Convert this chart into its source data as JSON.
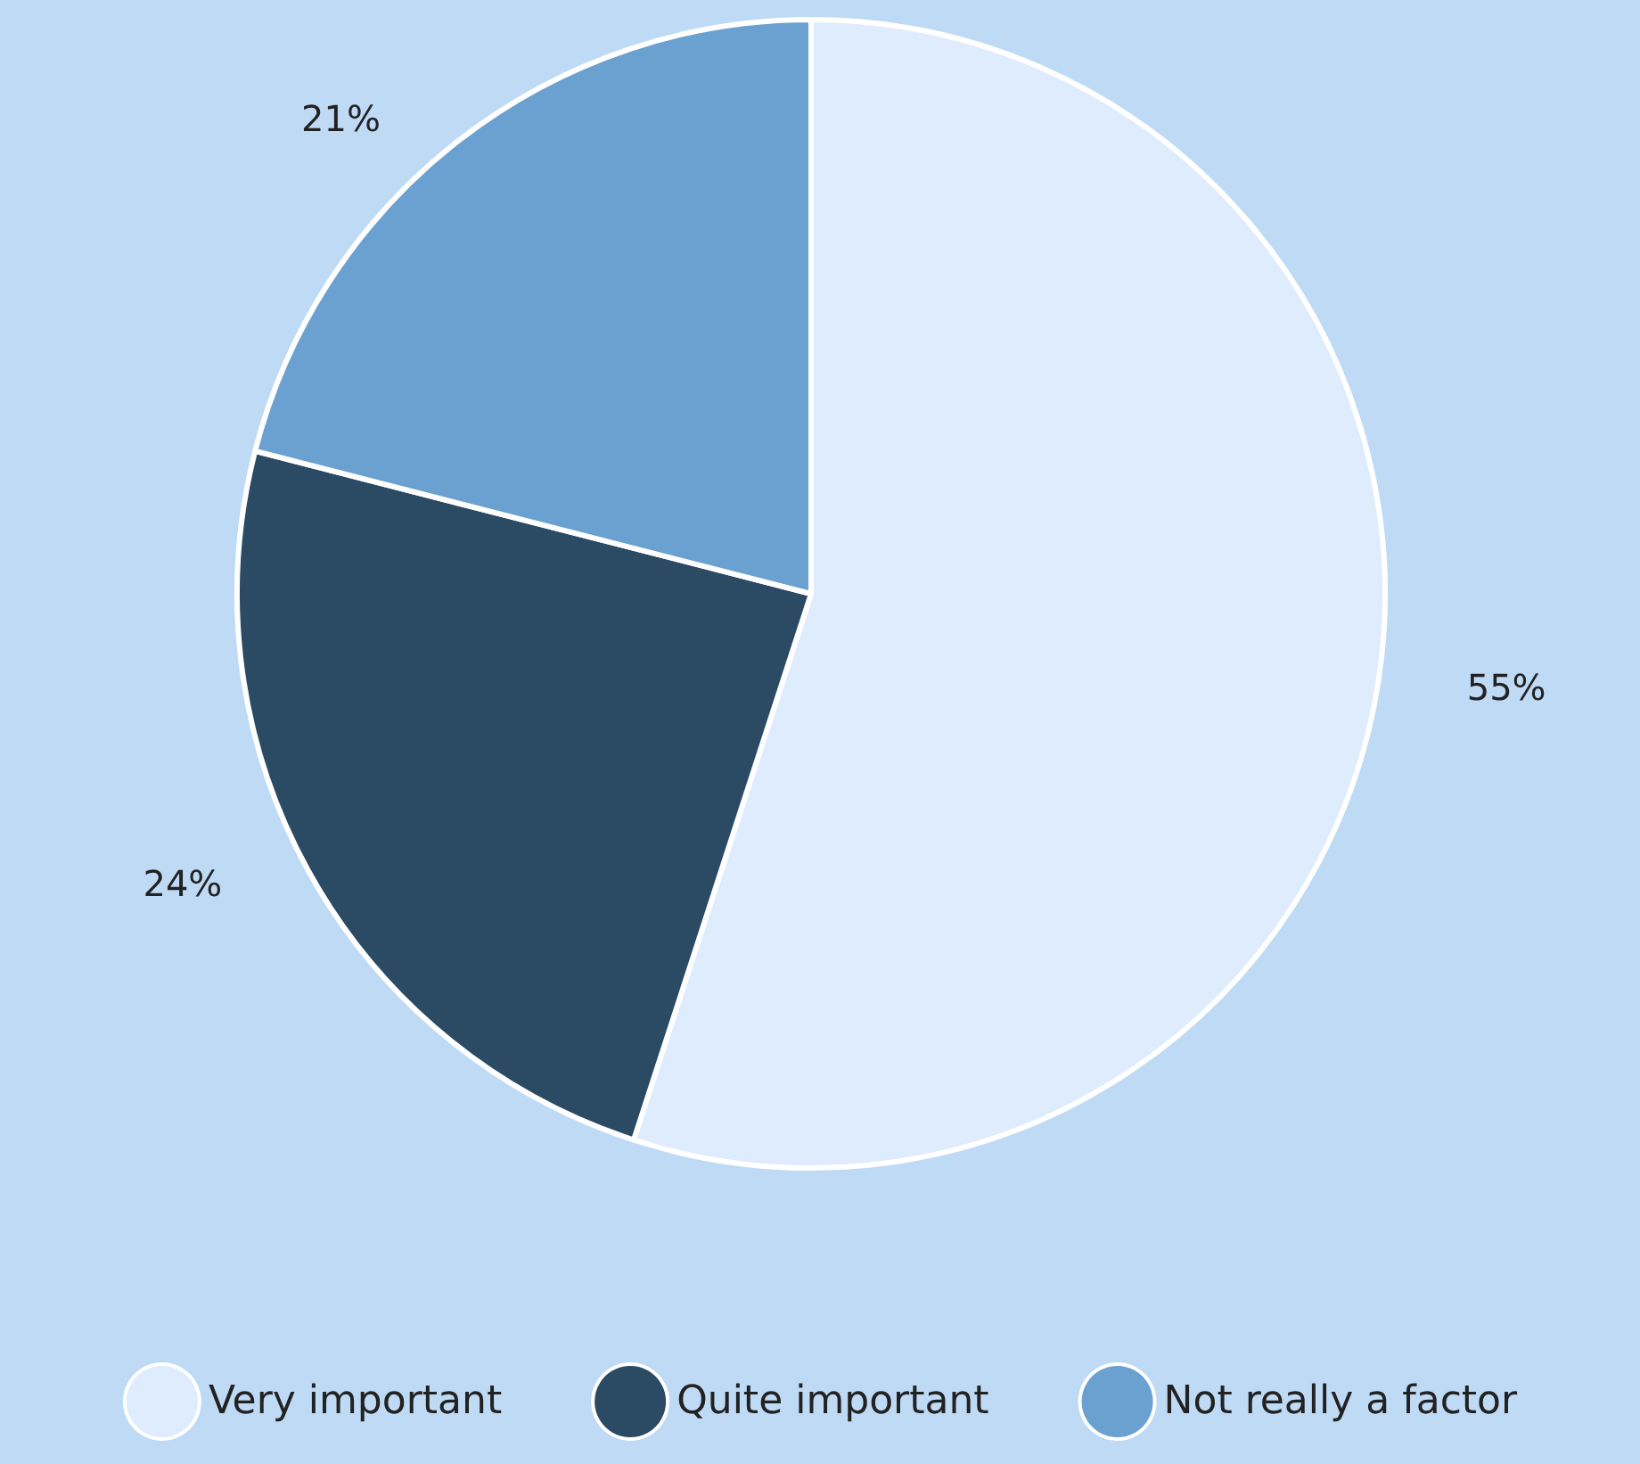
{
  "chart_data": {
    "type": "pie",
    "categories": [
      "Very important",
      "Quite important",
      "Not really a factor"
    ],
    "values": [
      55,
      24,
      21
    ],
    "colors": [
      "#deecfd",
      "#2b4a63",
      "#6aa1d0"
    ],
    "value_labels": [
      "55%",
      "24%",
      "21%"
    ],
    "legend": "bottom"
  }
}
